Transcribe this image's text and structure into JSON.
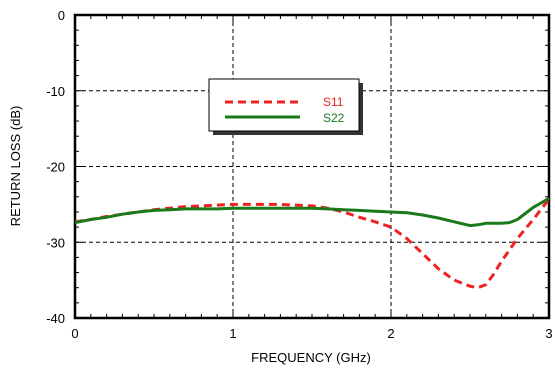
{
  "chart_data": {
    "type": "line",
    "title": "",
    "xlabel": "FREQUENCY (GHz)",
    "ylabel": "RETURN LOSS (dB)",
    "xlim": [
      0,
      3
    ],
    "ylim": [
      -40,
      0
    ],
    "xticks": [
      0,
      1,
      2,
      3
    ],
    "yticks": [
      0,
      -10,
      -20,
      -30,
      -40
    ],
    "grid": true,
    "legend_position": "top-center",
    "series": [
      {
        "name": "S11",
        "color": "#ee2222",
        "style": "dashed",
        "x": [
          0,
          0.1,
          0.2,
          0.3,
          0.4,
          0.5,
          0.6,
          0.7,
          0.8,
          0.9,
          1.0,
          1.1,
          1.2,
          1.3,
          1.4,
          1.5,
          1.6,
          1.7,
          1.8,
          1.9,
          2.0,
          2.1,
          2.2,
          2.3,
          2.4,
          2.5,
          2.55,
          2.6,
          2.65,
          2.7,
          2.8,
          2.9,
          3.0
        ],
        "values": [
          -27.3,
          -27.0,
          -26.6,
          -26.3,
          -26.0,
          -25.7,
          -25.5,
          -25.3,
          -25.2,
          -25.1,
          -25.0,
          -25.0,
          -25.0,
          -25.0,
          -25.1,
          -25.2,
          -25.5,
          -26.0,
          -26.7,
          -27.3,
          -28.0,
          -29.5,
          -31.5,
          -33.5,
          -35.0,
          -35.8,
          -36.0,
          -35.6,
          -34.2,
          -32.5,
          -29.5,
          -27.0,
          -24.3
        ]
      },
      {
        "name": "S22",
        "color": "#1a7a1a",
        "style": "solid",
        "x": [
          0,
          0.1,
          0.2,
          0.3,
          0.4,
          0.5,
          0.6,
          0.7,
          0.8,
          0.9,
          1.0,
          1.1,
          1.2,
          1.3,
          1.4,
          1.5,
          1.6,
          1.7,
          1.8,
          1.9,
          2.0,
          2.1,
          2.2,
          2.3,
          2.4,
          2.5,
          2.55,
          2.6,
          2.7,
          2.75,
          2.8,
          2.85,
          2.9,
          2.95,
          3.0
        ],
        "values": [
          -27.4,
          -27.0,
          -26.7,
          -26.3,
          -26.0,
          -25.8,
          -25.7,
          -25.6,
          -25.6,
          -25.6,
          -25.5,
          -25.5,
          -25.5,
          -25.5,
          -25.5,
          -25.5,
          -25.6,
          -25.7,
          -25.8,
          -25.9,
          -26.0,
          -26.1,
          -26.4,
          -26.8,
          -27.3,
          -27.8,
          -27.7,
          -27.5,
          -27.5,
          -27.4,
          -27.0,
          -26.2,
          -25.4,
          -24.8,
          -24.2
        ]
      }
    ]
  }
}
